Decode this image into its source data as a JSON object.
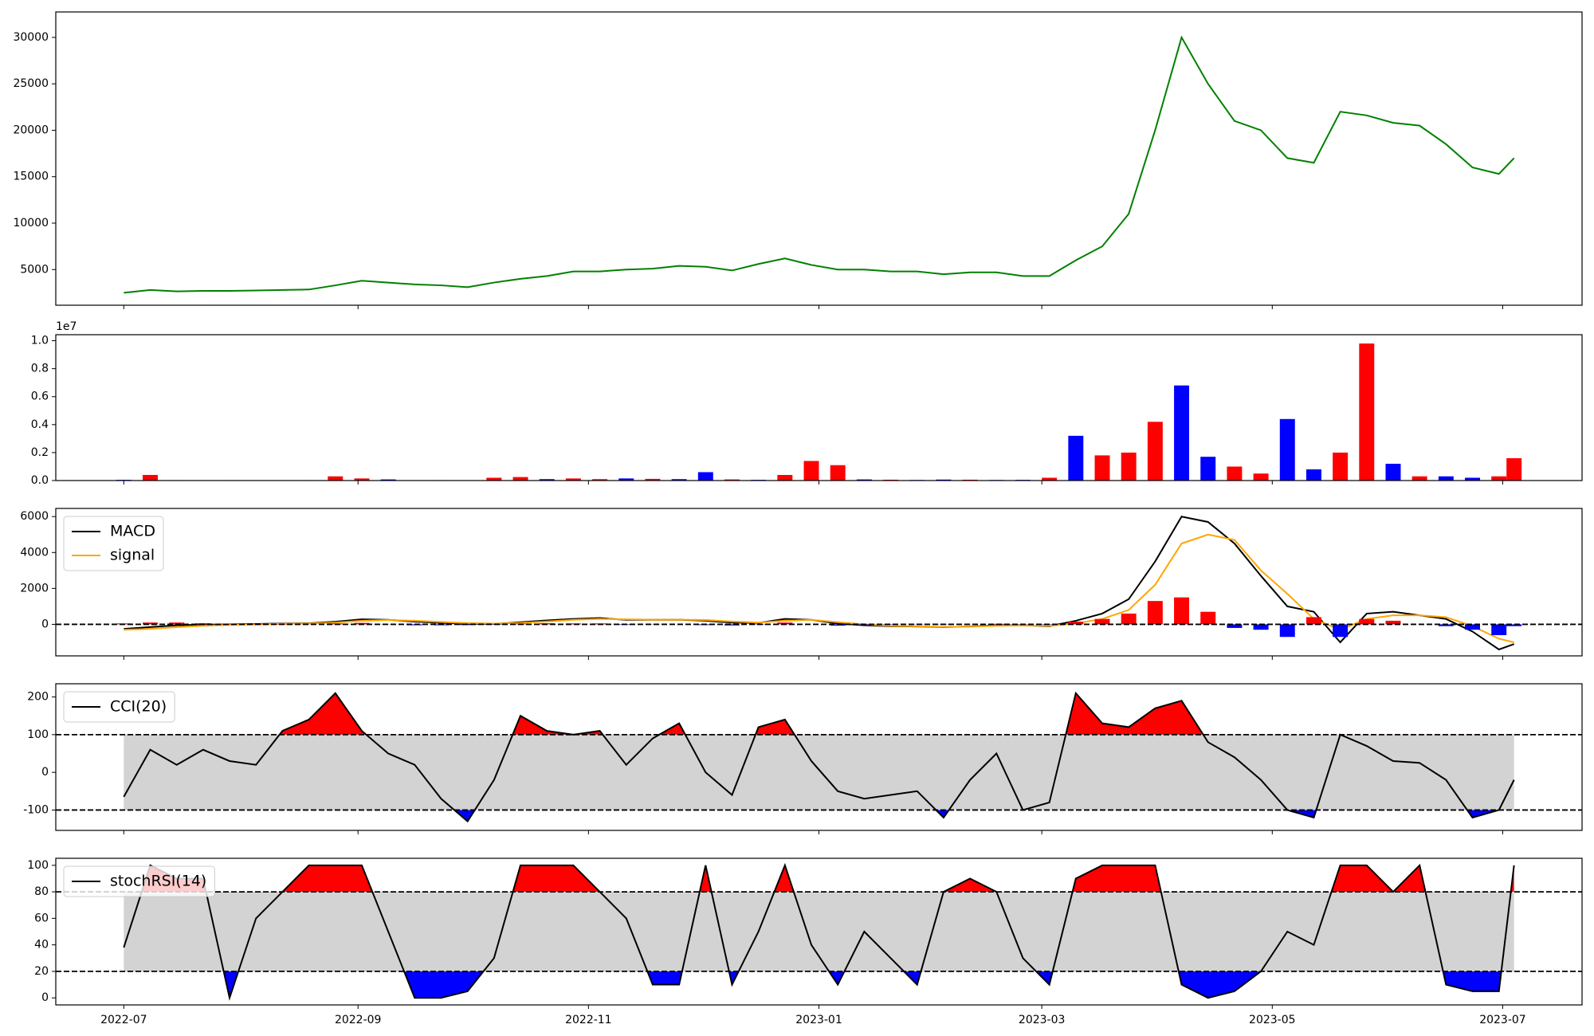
{
  "chart_data": [
    {
      "type": "line",
      "series": [
        {
          "color": "green",
          "values": [
            2500,
            2800,
            2650,
            2700,
            2700,
            2750,
            2800,
            2850,
            3300,
            3800,
            3600,
            3400,
            3300,
            3100,
            3600,
            4000,
            4300,
            4800,
            4800,
            5000,
            5100,
            5400,
            5300,
            4900,
            5600,
            6200,
            5500,
            5000,
            5000,
            4800,
            4800,
            4500,
            4700,
            4700,
            4300,
            4300,
            6000,
            7500,
            11000,
            20000,
            30000,
            25000,
            21000,
            20000,
            17000,
            16500,
            22000,
            21600,
            20800,
            20500,
            18500,
            16000,
            15300,
            17000
          ]
        }
      ],
      "ylim": [
        1160,
        32740
      ],
      "yticks": [
        5000,
        10000,
        15000,
        20000,
        25000,
        30000
      ]
    },
    {
      "type": "bar",
      "offset_label": "1e7",
      "series": [
        {
          "values": [
            50000,
            400000,
            30000,
            20000,
            30000,
            20000,
            20000,
            30000,
            300000,
            150000,
            80000,
            20000,
            30000,
            20000,
            200000,
            250000,
            100000,
            150000,
            100000,
            150000,
            120000,
            100000,
            600000,
            80000,
            50000,
            400000,
            1400000,
            1100000,
            80000,
            60000,
            40000,
            70000,
            60000,
            40000,
            50000,
            200000,
            3200000,
            1800000,
            2000000,
            4200000,
            6800000,
            1700000,
            1000000,
            500000,
            4400000,
            800000,
            2000000,
            9800000,
            1200000,
            300000,
            300000,
            200000,
            300000,
            1600000
          ],
          "colors": [
            "blue",
            "red",
            "blue",
            "red",
            "blue",
            "red",
            "blue",
            "red",
            "red",
            "red",
            "blue",
            "red",
            "blue",
            "red",
            "red",
            "red",
            "blue",
            "red",
            "red",
            "blue",
            "red",
            "blue",
            "blue",
            "red",
            "blue",
            "red",
            "red",
            "red",
            "blue",
            "red",
            "blue",
            "blue",
            "red",
            "blue",
            "blue",
            "red",
            "blue",
            "red",
            "red",
            "red",
            "blue",
            "blue",
            "red",
            "red",
            "blue",
            "blue",
            "red",
            "red",
            "blue",
            "red",
            "blue",
            "blue",
            "red",
            "red"
          ]
        }
      ],
      "ylim": [
        0,
        10430000
      ],
      "yticks": [
        {
          "value": 0,
          "label": "0.0"
        },
        {
          "value": 2000000,
          "label": "0.2"
        },
        {
          "value": 4000000,
          "label": "0.4"
        },
        {
          "value": 6000000,
          "label": "0.6"
        },
        {
          "value": 8000000,
          "label": "0.8"
        },
        {
          "value": 10000000,
          "label": "1.0"
        }
      ]
    },
    {
      "type": "line",
      "legend": "upper left",
      "series": [
        {
          "name": "MACD",
          "color": "black",
          "values": [
            -250,
            -150,
            -50,
            -20,
            0,
            20,
            50,
            60,
            150,
            280,
            250,
            150,
            80,
            30,
            20,
            120,
            220,
            300,
            350,
            250,
            250,
            260,
            200,
            100,
            80,
            300,
            250,
            50,
            -50,
            -100,
            -120,
            -150,
            -120,
            -50,
            -50,
            -100,
            200,
            600,
            1400,
            3500,
            6000,
            5700,
            4500,
            2700,
            1000,
            700,
            -1000,
            600,
            700,
            500,
            300,
            -400,
            -1400,
            -1100
          ]
        },
        {
          "name": "signal",
          "color": "orange",
          "values": [
            -300,
            -250,
            -150,
            -80,
            -30,
            0,
            30,
            50,
            100,
            200,
            240,
            200,
            130,
            70,
            40,
            80,
            160,
            250,
            300,
            280,
            260,
            260,
            240,
            160,
            100,
            200,
            250,
            120,
            0,
            -80,
            -110,
            -140,
            -130,
            -80,
            -60,
            -80,
            50,
            300,
            800,
            2200,
            4500,
            5000,
            4700,
            3000,
            1700,
            300,
            -300,
            300,
            500,
            500,
            400,
            -100,
            -800,
            -1000
          ]
        },
        {
          "type": "bar",
          "pos_color": "red",
          "neg_color": "blue",
          "values": [
            50,
            100,
            100,
            60,
            30,
            20,
            20,
            10,
            50,
            80,
            10,
            -50,
            -50,
            -40,
            -20,
            40,
            60,
            50,
            50,
            -30,
            -10,
            0,
            -40,
            -60,
            -20,
            100,
            0,
            -70,
            -50,
            -20,
            -10,
            -10,
            10,
            30,
            10,
            -20,
            150,
            300,
            600,
            1300,
            1500,
            700,
            -200,
            -300,
            -700,
            400,
            -700,
            300,
            200,
            0,
            -100,
            -300,
            -600,
            -100
          ]
        }
      ],
      "hlines": [
        {
          "value": 0
        }
      ],
      "ylim": [
        -1755,
        6453
      ],
      "yticks": [
        0,
        2000,
        4000,
        6000
      ]
    },
    {
      "type": "line",
      "legend": "upper left",
      "band_color": "lightgray",
      "series": [
        {
          "name": "CCI(20)",
          "color": "black",
          "values": [
            -65,
            60,
            20,
            60,
            30,
            20,
            110,
            140,
            210,
            110,
            50,
            20,
            -70,
            -130,
            -20,
            150,
            110,
            100,
            110,
            20,
            90,
            130,
            0,
            -60,
            120,
            140,
            30,
            -50,
            -70,
            -60,
            -50,
            -120,
            -20,
            50,
            -100,
            -80,
            210,
            130,
            120,
            170,
            190,
            80,
            40,
            -20,
            -100,
            -120,
            100,
            70,
            30,
            25,
            -20,
            -120,
            -100,
            -20
          ]
        }
      ],
      "hlines": [
        {
          "value": 100,
          "side": "above",
          "fill": "red"
        },
        {
          "value": -100,
          "side": "below",
          "fill": "blue"
        }
      ],
      "ylim": [
        -154,
        235
      ],
      "yticks": [
        -100,
        0,
        100,
        200
      ]
    },
    {
      "type": "line",
      "legend": "upper left",
      "band_color": "lightgray",
      "series": [
        {
          "name": "stochRSI(14)",
          "color": "black",
          "values": [
            38,
            100,
            90,
            90,
            0,
            60,
            80,
            100,
            100,
            100,
            50,
            0,
            0,
            5,
            30,
            100,
            100,
            100,
            80,
            60,
            10,
            10,
            100,
            10,
            50,
            100,
            40,
            10,
            50,
            30,
            10,
            80,
            90,
            80,
            30,
            10,
            90,
            100,
            100,
            100,
            10,
            0,
            5,
            20,
            50,
            40,
            100,
            100,
            80,
            100,
            10,
            5,
            5,
            100
          ]
        }
      ],
      "hlines": [
        {
          "value": 80,
          "side": "above",
          "fill": "red"
        },
        {
          "value": 20,
          "side": "below",
          "fill": "blue"
        }
      ],
      "ylim": [
        -5.3,
        105.3
      ],
      "yticks": [
        0,
        20,
        40,
        60,
        80,
        100
      ],
      "x": [
        0,
        7,
        14,
        21,
        28,
        35,
        42,
        49,
        56,
        63,
        70,
        77,
        84,
        91,
        98,
        105,
        112,
        119,
        126,
        133,
        140,
        147,
        154,
        161,
        168,
        175,
        182,
        189,
        196,
        203,
        210,
        217,
        224,
        231,
        238,
        245,
        252,
        259,
        266,
        273,
        280,
        287,
        294,
        301,
        308,
        315,
        322,
        329,
        336,
        343,
        350,
        357,
        364,
        368
      ],
      "xlim": [
        -18,
        386
      ],
      "xticks": [
        {
          "value": 0,
          "label": "2022-07"
        },
        {
          "value": 62,
          "label": "2022-09"
        },
        {
          "value": 123,
          "label": "2022-11"
        },
        {
          "value": 184,
          "label": "2023-01"
        },
        {
          "value": 243,
          "label": "2023-03"
        },
        {
          "value": 304,
          "label": "2023-05"
        },
        {
          "value": 365,
          "label": "2023-07"
        }
      ]
    }
  ]
}
